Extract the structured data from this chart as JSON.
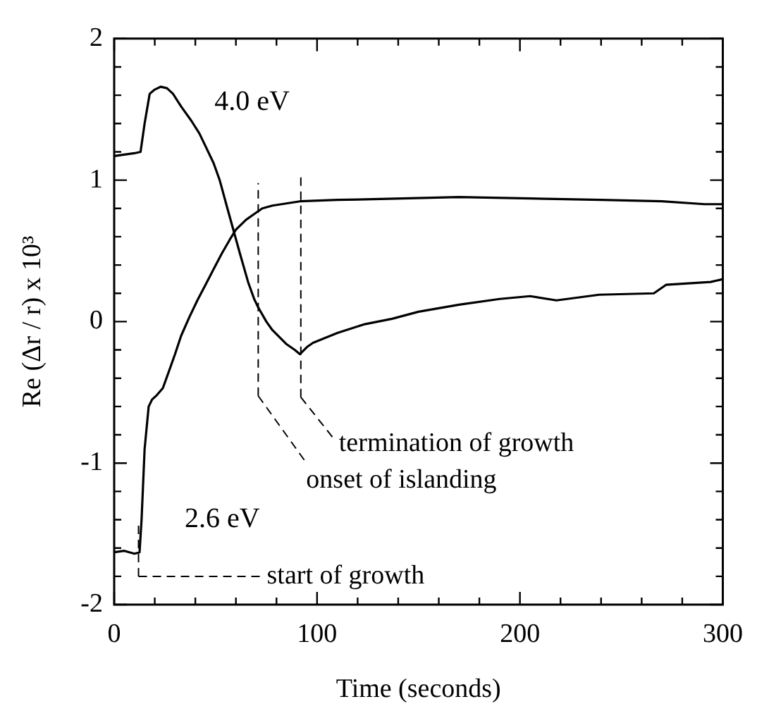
{
  "chart_data": {
    "type": "line",
    "xlabel": "Time (seconds)",
    "ylabel": "Re (Δr / r) x 10³",
    "xlim": [
      0,
      300
    ],
    "xticks": [
      0,
      100,
      200,
      300
    ],
    "ylim": [
      -2,
      2
    ],
    "yticks": [
      -2,
      -1,
      0,
      1,
      2
    ],
    "marker": "none",
    "line_style": "solid",
    "series": [
      {
        "name": "4.0 eV",
        "color": "#000000",
        "x": [
          0,
          5,
          10,
          13,
          15,
          17.5,
          20,
          23,
          26,
          29,
          33,
          38,
          42,
          45,
          49,
          52,
          56,
          62,
          66,
          69,
          71,
          75,
          78,
          85,
          89,
          91.5,
          95,
          98,
          110,
          123,
          137,
          150,
          170,
          190,
          205,
          218,
          239,
          266,
          272,
          294,
          300
        ],
        "values": [
          1.17,
          1.18,
          1.19,
          1.2,
          1.4,
          1.61,
          1.64,
          1.66,
          1.65,
          1.61,
          1.52,
          1.42,
          1.33,
          1.24,
          1.12,
          1.0,
          0.79,
          0.48,
          0.28,
          0.16,
          0.1,
          0.0,
          -0.06,
          -0.16,
          -0.2,
          -0.23,
          -0.18,
          -0.15,
          -0.08,
          -0.02,
          0.02,
          0.07,
          0.12,
          0.16,
          0.18,
          0.15,
          0.19,
          0.2,
          0.26,
          0.28,
          0.3
        ]
      },
      {
        "name": "2.6 eV",
        "color": "#000000",
        "x": [
          0,
          5,
          10,
          12.5,
          13.5,
          15,
          17,
          18.7,
          21,
          24,
          27,
          30,
          33,
          37,
          41,
          45,
          49,
          53,
          57,
          60,
          65,
          69,
          73,
          78,
          91.5,
          110,
          142,
          170,
          205,
          240,
          270,
          291,
          300
        ],
        "values": [
          -1.63,
          -1.62,
          -1.64,
          -1.63,
          -1.4,
          -0.9,
          -0.6,
          -0.55,
          -0.52,
          -0.47,
          -0.35,
          -0.23,
          -0.1,
          0.03,
          0.15,
          0.26,
          0.37,
          0.48,
          0.58,
          0.65,
          0.72,
          0.76,
          0.8,
          0.82,
          0.85,
          0.86,
          0.87,
          0.88,
          0.87,
          0.86,
          0.85,
          0.83,
          0.83
        ]
      }
    ],
    "ref_lines": [
      {
        "axis": "x",
        "value": 12,
        "label": "start of growth",
        "line_style": "dashed"
      },
      {
        "axis": "x",
        "value": 71,
        "label": "onset of islanding",
        "line_style": "dashed"
      },
      {
        "axis": "x",
        "value": 92,
        "label": "termination of growth",
        "line_style": "dashed"
      }
    ]
  }
}
